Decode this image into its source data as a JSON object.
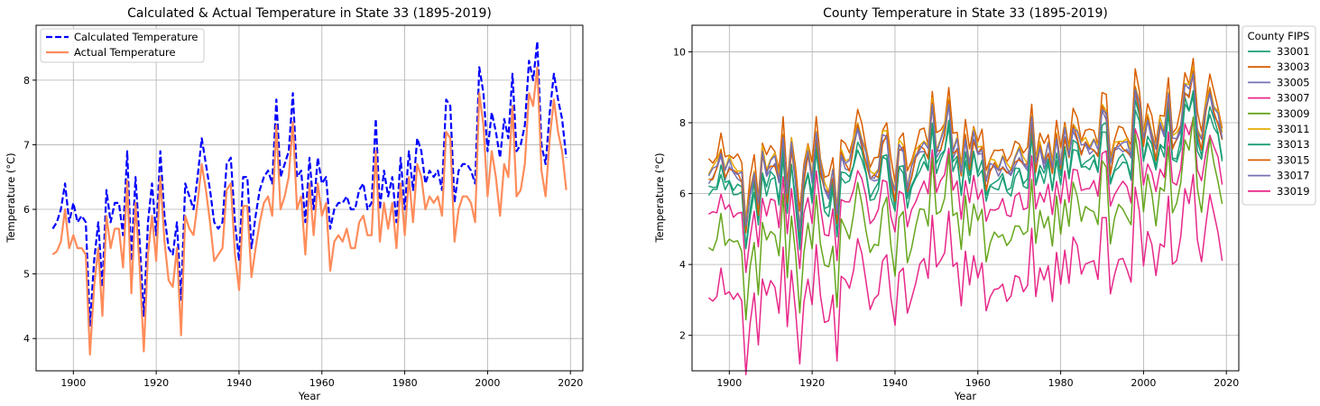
{
  "chart_data": [
    {
      "type": "line",
      "title": "Calculated & Actual Temperature in State 33 (1895-2019)",
      "xlabel": "Year",
      "ylabel": "Temperature (°C)",
      "xlim": [
        1891,
        2023
      ],
      "ylim": [
        3.5,
        8.85
      ],
      "xticks": [
        1900,
        1920,
        1940,
        1960,
        1980,
        2000,
        2020
      ],
      "yticks": [
        4,
        5,
        6,
        7,
        8
      ],
      "grid": true,
      "legend": "top-left",
      "x": [
        1895,
        1896,
        1897,
        1898,
        1899,
        1900,
        1901,
        1902,
        1903,
        1904,
        1905,
        1906,
        1907,
        1908,
        1909,
        1910,
        1911,
        1912,
        1913,
        1914,
        1915,
        1916,
        1917,
        1918,
        1919,
        1920,
        1921,
        1922,
        1923,
        1924,
        1925,
        1926,
        1927,
        1928,
        1929,
        1930,
        1931,
        1932,
        1933,
        1934,
        1935,
        1936,
        1937,
        1938,
        1939,
        1940,
        1941,
        1942,
        1943,
        1944,
        1945,
        1946,
        1947,
        1948,
        1949,
        1950,
        1951,
        1952,
        1953,
        1954,
        1955,
        1956,
        1957,
        1958,
        1959,
        1960,
        1961,
        1962,
        1963,
        1964,
        1965,
        1966,
        1967,
        1968,
        1969,
        1970,
        1971,
        1972,
        1973,
        1974,
        1975,
        1976,
        1977,
        1978,
        1979,
        1980,
        1981,
        1982,
        1983,
        1984,
        1985,
        1986,
        1987,
        1988,
        1989,
        1990,
        1991,
        1992,
        1993,
        1994,
        1995,
        1996,
        1997,
        1998,
        1999,
        2000,
        2001,
        2002,
        2003,
        2004,
        2005,
        2006,
        2007,
        2008,
        2009,
        2010,
        2011,
        2012,
        2013,
        2014,
        2015,
        2016,
        2017,
        2018,
        2019
      ],
      "series": [
        {
          "name": "Calculated Temperature",
          "color": "#0000ff",
          "style": "dashed",
          "values": [
            5.7,
            5.8,
            6.0,
            6.4,
            5.8,
            6.1,
            5.8,
            5.9,
            5.8,
            4.2,
            5.2,
            5.8,
            4.8,
            6.3,
            5.8,
            6.1,
            6.1,
            5.6,
            6.9,
            5.2,
            6.5,
            5.5,
            4.35,
            5.8,
            6.4,
            5.6,
            6.9,
            5.9,
            5.4,
            5.3,
            5.8,
            4.6,
            6.4,
            6.2,
            6.0,
            6.5,
            7.1,
            6.7,
            6.3,
            5.8,
            5.7,
            5.8,
            6.7,
            6.8,
            5.8,
            5.2,
            6.5,
            6.5,
            5.4,
            5.9,
            6.3,
            6.5,
            6.6,
            6.4,
            7.7,
            6.5,
            6.7,
            6.9,
            7.8,
            6.5,
            6.6,
            5.8,
            6.8,
            6.0,
            6.8,
            6.4,
            6.5,
            5.7,
            6.0,
            6.1,
            6.1,
            6.2,
            6.0,
            6.0,
            6.3,
            6.4,
            6.0,
            6.1,
            7.4,
            6.0,
            6.6,
            6.2,
            6.5,
            5.8,
            6.8,
            6.0,
            6.9,
            6.3,
            7.1,
            6.9,
            6.4,
            6.6,
            6.5,
            6.6,
            6.3,
            7.7,
            7.6,
            6.1,
            6.6,
            6.7,
            6.7,
            6.6,
            6.4,
            8.2,
            7.8,
            6.9,
            7.5,
            7.2,
            6.8,
            7.4,
            7.1,
            8.1,
            6.9,
            7.0,
            7.3,
            8.3,
            8.0,
            8.6,
            7.0,
            6.7,
            7.5,
            8.1,
            7.7,
            7.4,
            6.8
          ]
        },
        {
          "name": "Actual Temperature",
          "color": "#ff8c5a",
          "style": "solid",
          "values": [
            5.3,
            5.35,
            5.5,
            6.0,
            5.4,
            5.6,
            5.4,
            5.4,
            5.3,
            3.75,
            4.8,
            5.4,
            4.35,
            5.9,
            5.4,
            5.7,
            5.7,
            5.1,
            6.45,
            4.7,
            6.1,
            5.1,
            3.8,
            5.3,
            5.9,
            5.2,
            6.5,
            5.5,
            4.9,
            4.8,
            5.4,
            4.05,
            5.9,
            5.7,
            5.6,
            6.1,
            6.7,
            6.3,
            5.8,
            5.2,
            5.3,
            5.4,
            6.3,
            6.4,
            5.3,
            4.75,
            6.05,
            6.05,
            4.95,
            5.4,
            5.8,
            6.1,
            6.2,
            5.9,
            7.3,
            6.0,
            6.2,
            6.5,
            7.35,
            6.0,
            6.2,
            5.3,
            6.4,
            5.6,
            6.4,
            5.9,
            6.1,
            5.05,
            5.5,
            5.6,
            5.5,
            5.7,
            5.4,
            5.4,
            5.8,
            5.9,
            5.6,
            5.6,
            6.9,
            5.5,
            6.1,
            5.7,
            6.1,
            5.4,
            6.4,
            5.6,
            6.5,
            5.8,
            6.7,
            6.5,
            6.0,
            6.2,
            6.1,
            6.2,
            5.9,
            7.2,
            7.1,
            5.5,
            6.0,
            6.2,
            6.2,
            6.1,
            5.8,
            7.8,
            7.3,
            6.2,
            6.9,
            6.5,
            5.9,
            6.7,
            6.5,
            7.6,
            6.2,
            6.3,
            6.7,
            7.8,
            7.6,
            8.2,
            6.6,
            6.2,
            7.1,
            7.7,
            7.2,
            6.9,
            6.3
          ]
        }
      ]
    },
    {
      "type": "line",
      "title": "County Temperature in State 33 (1895-2019)",
      "xlabel": "Year",
      "ylabel": "Temperature (°C)",
      "xlim": [
        1891,
        2023
      ],
      "ylim": [
        1.0,
        10.75
      ],
      "xticks": [
        1900,
        1920,
        1940,
        1960,
        1980,
        2000,
        2020
      ],
      "yticks": [
        2,
        4,
        6,
        8,
        10
      ],
      "grid": true,
      "legend": "outside-right",
      "legend_title": "County FIPS",
      "series": [
        {
          "name": "33001",
          "color": "#1b9e77",
          "offset": 0.65
        },
        {
          "name": "33003",
          "color": "#d95f02",
          "offset": 1.6
        },
        {
          "name": "33005",
          "color": "#7570b3",
          "offset": 1.1
        },
        {
          "name": "33007",
          "color": "#e7298a",
          "offset": 0.05
        },
        {
          "name": "33009",
          "color": "#66a61e",
          "offset": -0.7
        },
        {
          "name": "33011",
          "color": "#e6ab02",
          "offset": 1.35
        },
        {
          "name": "33013",
          "color": "#1b9e77",
          "offset": 0.8
        },
        {
          "name": "33015",
          "color": "#d95f02",
          "offset": 1.15
        },
        {
          "name": "33017",
          "color": "#7570b3",
          "offset": 1.25
        },
        {
          "name": "33019",
          "color": "#e7298a",
          "offset": -2.2
        }
      ]
    }
  ]
}
